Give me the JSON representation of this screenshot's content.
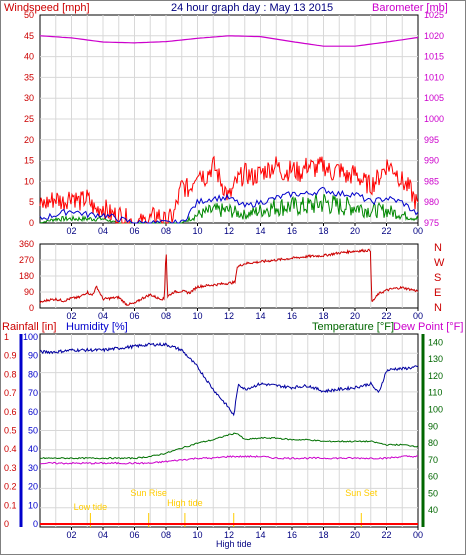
{
  "colors": {
    "wind": "#ff0000",
    "gust_line": "#0000cc",
    "baro": "#cc00cc",
    "dir": "#cc0000",
    "rain": "#ff0000",
    "humidity": "#0000a0",
    "temp": "#007000",
    "dew": "#cc00cc",
    "grid": "#d8d8d8",
    "axis_left": "#cc0000",
    "axis_baro": "#cc00cc",
    "axis_hum": "#0000cc",
    "axis_temp": "#006600",
    "marker": "#ffcc00",
    "green_fill": "#008800"
  },
  "chart_data": [
    {
      "id": "wind-baro",
      "type": "line",
      "title": "24 hour graph day : May 13 2015",
      "ylabel_left": "Windspeed [mph]",
      "ylabel_right": "Barometer [mb]",
      "ylim_left": [
        0,
        50
      ],
      "ylim_right": [
        975,
        1025
      ],
      "yticks_left": [
        "0",
        "5",
        "10",
        "15",
        "20",
        "25",
        "30",
        "35",
        "40",
        "45",
        "50"
      ],
      "yticks_right": [
        "975",
        "980",
        "985",
        "990",
        "995",
        "1000",
        "1005",
        "1010",
        "1015",
        "1020",
        "1025"
      ],
      "xticks": [
        "02",
        "04",
        "06",
        "08",
        "10",
        "12",
        "14",
        "16",
        "18",
        "20",
        "22",
        "00"
      ],
      "xlim": [
        0,
        24
      ],
      "series": [
        {
          "name": "wind-gust",
          "x": [
            0,
            0.5,
            1,
            1.5,
            2,
            2.5,
            3,
            3.5,
            4,
            4.5,
            5,
            5.5,
            6,
            6.5,
            7,
            7.5,
            8,
            8.5,
            9,
            9.5,
            10,
            10.5,
            11,
            11.5,
            12,
            12.5,
            13,
            13.5,
            14,
            14.5,
            15,
            15.5,
            16,
            16.5,
            17,
            17.5,
            18,
            18.5,
            19,
            19.5,
            20,
            20.5,
            21,
            21.5,
            22,
            22.5,
            23,
            23.5,
            24
          ],
          "values": [
            4,
            5,
            6,
            5,
            7,
            5,
            6,
            3,
            4,
            2,
            2,
            1,
            0,
            0,
            1,
            2,
            0,
            2,
            9,
            8,
            13,
            11,
            14,
            10,
            6,
            10,
            12,
            11,
            12,
            13,
            14,
            12,
            13,
            12,
            14,
            13,
            14,
            12,
            13,
            11,
            12,
            10,
            9,
            11,
            14,
            13,
            10,
            8,
            4
          ]
        },
        {
          "name": "wind-average",
          "x": [
            0,
            1,
            2,
            3,
            4,
            5,
            6,
            7,
            8,
            9,
            10,
            11,
            12,
            13,
            14,
            15,
            16,
            17,
            18,
            19,
            20,
            21,
            22,
            23,
            24
          ],
          "values": [
            1,
            2,
            3,
            2,
            2,
            1,
            0,
            0,
            0,
            0,
            5,
            6,
            6,
            4,
            5,
            6,
            7,
            7,
            8,
            7,
            7,
            5,
            6,
            5,
            2
          ]
        },
        {
          "name": "wind-speed",
          "x": [
            0,
            1,
            2,
            3,
            4,
            5,
            6,
            7,
            8,
            9,
            10,
            11,
            12,
            13,
            14,
            15,
            16,
            17,
            18,
            19,
            20,
            21,
            22,
            23,
            24
          ],
          "values": [
            0,
            1,
            1,
            1,
            1,
            0,
            0,
            0,
            0,
            0,
            2,
            3,
            3,
            2,
            3,
            4,
            4,
            4,
            5,
            4,
            4,
            3,
            3,
            2,
            1
          ]
        },
        {
          "name": "barometer",
          "x": [
            0,
            2,
            4,
            6,
            8,
            10,
            12,
            14,
            16,
            18,
            20,
            22,
            24
          ],
          "values": [
            1020.0,
            1019.5,
            1018.5,
            1018.3,
            1018.6,
            1019.4,
            1020.0,
            1019.8,
            1018.6,
            1017.5,
            1017.5,
            1018.5,
            1019.6
          ]
        }
      ]
    },
    {
      "id": "wind-direction",
      "type": "line",
      "ylim": [
        0,
        360
      ],
      "yticks": [
        "0",
        "90",
        "180",
        "270",
        "360"
      ],
      "compass": [
        "N",
        "W",
        "S",
        "E",
        "N"
      ],
      "xticks": [
        "02",
        "04",
        "06",
        "08",
        "10",
        "12",
        "14",
        "16",
        "18",
        "20",
        "22",
        "00"
      ],
      "xlim": [
        0,
        24
      ],
      "series": [
        {
          "name": "direction",
          "x": [
            0,
            0.5,
            1,
            1.5,
            2,
            2.5,
            3,
            3.3,
            3.6,
            4,
            4.5,
            5,
            5.5,
            6,
            6.5,
            7,
            7.5,
            7.9,
            8,
            8.1,
            8.5,
            9,
            9.5,
            10,
            11,
            12,
            12.4,
            12.5,
            13,
            14,
            15,
            16,
            17,
            18,
            19,
            20,
            21,
            21.05,
            21.5,
            22,
            22.5,
            23,
            23.5,
            24
          ],
          "values": [
            30,
            45,
            50,
            40,
            55,
            60,
            90,
            70,
            120,
            50,
            55,
            60,
            20,
            25,
            55,
            75,
            55,
            50,
            350,
            65,
            90,
            95,
            85,
            120,
            130,
            140,
            145,
            230,
            250,
            260,
            270,
            280,
            290,
            295,
            310,
            320,
            325,
            30,
            80,
            100,
            110,
            115,
            105,
            95
          ]
        }
      ]
    },
    {
      "id": "rain-humidity-temp",
      "type": "line",
      "ylabel_rain": "Rainfall [in]",
      "ylabel_humidity": "Humidity [%]",
      "ylabel_temp": "Temperature [°F]",
      "ylabel_dew": "Dew Point [°F]",
      "yticks_rain": [
        "0",
        "0.1",
        "0.2",
        "0.3",
        "0.4",
        "0.5",
        "0.6",
        "0.7",
        "0.8",
        "0.9",
        "1"
      ],
      "yticks_humidity": [
        "0",
        "10",
        "20",
        "30",
        "40",
        "50",
        "60",
        "70",
        "80",
        "90",
        "100"
      ],
      "yticks_temp": [
        "40",
        "50",
        "60",
        "70",
        "80",
        "90",
        "100",
        "110",
        "120",
        "130",
        "140"
      ],
      "ylim_humidity": [
        0,
        100
      ],
      "ylim_temp": [
        30,
        145
      ],
      "xticks": [
        "02",
        "04",
        "06",
        "08",
        "10",
        "12",
        "14",
        "16",
        "18",
        "20",
        "22",
        "00"
      ],
      "xlim": [
        0,
        24
      ],
      "annotations": [
        {
          "label": "Low tide",
          "x": 3.2
        },
        {
          "label": "Sun Rise",
          "x": 6.9
        },
        {
          "label": "High tide",
          "x": 9.2
        },
        {
          "label": "High tide",
          "x": 12.3
        },
        {
          "label": "Sun Set",
          "x": 20.4
        }
      ],
      "series": [
        {
          "name": "humidity",
          "x": [
            0,
            1,
            2,
            3,
            4,
            5,
            6,
            7,
            8,
            9,
            10,
            11,
            11.5,
            12,
            12.3,
            12.6,
            13,
            14,
            15,
            16,
            17,
            18,
            19,
            20,
            21,
            21.5,
            22,
            22.5,
            23,
            24
          ],
          "values": [
            92,
            92,
            93,
            93,
            93,
            94,
            95,
            96,
            96,
            93,
            84,
            72,
            67,
            62,
            58,
            75,
            72,
            75,
            74,
            73,
            74,
            71,
            72,
            73,
            75,
            70,
            82,
            83,
            83,
            84
          ]
        },
        {
          "name": "temperature",
          "x": [
            0,
            2,
            4,
            6,
            7,
            8,
            9,
            10,
            11,
            12,
            12.5,
            13,
            14,
            15,
            16,
            17,
            18,
            19,
            20,
            21,
            22,
            23,
            24
          ],
          "values": [
            71,
            71,
            71,
            71,
            72,
            74,
            77,
            80,
            82,
            85,
            86,
            82,
            83,
            83,
            82,
            82,
            81,
            81,
            81,
            81,
            79,
            79,
            78
          ]
        },
        {
          "name": "dew-point",
          "x": [
            0,
            2,
            4,
            6,
            7,
            8,
            9,
            10,
            11,
            12,
            13,
            14,
            15,
            16,
            17,
            18,
            19,
            20,
            21,
            22,
            23,
            24
          ],
          "values": [
            68,
            68,
            68,
            68,
            68,
            69,
            70,
            71,
            71,
            72,
            72,
            72,
            71,
            71,
            71,
            71,
            71,
            71,
            71,
            71,
            72,
            72
          ]
        },
        {
          "name": "rainfall",
          "x": [
            0,
            24
          ],
          "values": [
            0,
            0
          ]
        }
      ]
    }
  ]
}
